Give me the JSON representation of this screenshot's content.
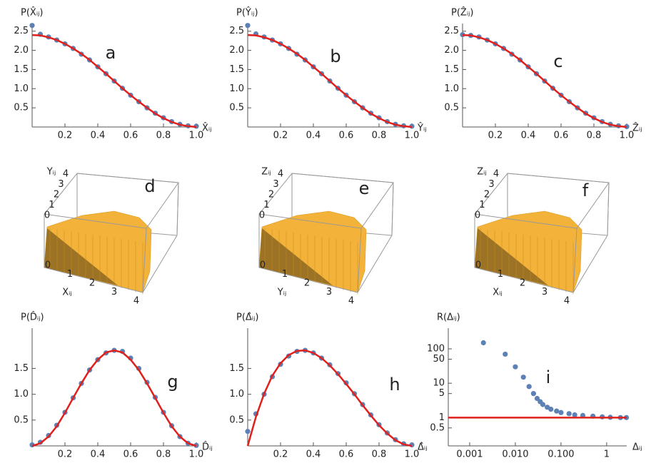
{
  "chart_data": [
    {
      "type": "plot",
      "label": "a",
      "ylabel": "P(X̂ᵢⱼ)",
      "xlabel": "X̂ᵢⱼ",
      "xlim": [
        0,
        1
      ],
      "ylim": [
        0,
        2.7
      ],
      "xticks": [
        0.2,
        0.4,
        0.6,
        0.8,
        {
          "value": 1,
          "label": "1.0"
        }
      ],
      "yticks": [
        0.5,
        {
          "value": 1,
          "label": "1.0"
        },
        1.5,
        {
          "value": 2,
          "label": "2.0"
        },
        2.5
      ],
      "series": [
        {
          "style": "points",
          "color": "#5e81b5",
          "x": [
            0,
            0.05,
            0.1,
            0.15,
            0.2,
            0.25,
            0.3,
            0.35,
            0.4,
            0.45,
            0.5,
            0.55,
            0.6,
            0.65,
            0.7,
            0.75,
            0.8,
            0.85,
            0.9,
            0.95,
            1
          ],
          "values": [
            2.65,
            2.42,
            2.35,
            2.27,
            2.17,
            2.05,
            1.9,
            1.75,
            1.57,
            1.39,
            1.2,
            1.01,
            0.83,
            0.66,
            0.5,
            0.36,
            0.24,
            0.14,
            0.07,
            0.03,
            0.02
          ]
        },
        {
          "style": "line",
          "color": "#e0201c",
          "x": [
            0,
            0.05,
            0.1,
            0.15,
            0.2,
            0.25,
            0.3,
            0.35,
            0.4,
            0.45,
            0.5,
            0.55,
            0.6,
            0.65,
            0.7,
            0.75,
            0.8,
            0.85,
            0.9,
            0.95,
            1
          ],
          "values": [
            2.4,
            2.39,
            2.34,
            2.27,
            2.17,
            2.05,
            1.91,
            1.75,
            1.57,
            1.39,
            1.2,
            1.01,
            0.83,
            0.66,
            0.5,
            0.35,
            0.23,
            0.13,
            0.06,
            0.02,
            0
          ]
        }
      ]
    },
    {
      "type": "plot",
      "label": "b",
      "ylabel": "P(Ŷᵢⱼ)",
      "xlabel": "Ŷᵢⱼ",
      "xlim": [
        0,
        1
      ],
      "ylim": [
        0,
        2.7
      ],
      "xticks": [
        0.2,
        0.4,
        0.6,
        0.8,
        {
          "value": 1,
          "label": "1.0"
        }
      ],
      "yticks": [
        0.5,
        {
          "value": 1,
          "label": "1.0"
        },
        1.5,
        {
          "value": 2,
          "label": "2.0"
        },
        2.5
      ],
      "series": [
        {
          "style": "points",
          "color": "#5e81b5",
          "x": [
            0,
            0.05,
            0.1,
            0.15,
            0.2,
            0.25,
            0.3,
            0.35,
            0.4,
            0.45,
            0.5,
            0.55,
            0.6,
            0.65,
            0.7,
            0.75,
            0.8,
            0.85,
            0.9,
            0.95,
            1
          ],
          "values": [
            2.65,
            2.43,
            2.35,
            2.27,
            2.17,
            2.05,
            1.9,
            1.75,
            1.57,
            1.39,
            1.2,
            1.01,
            0.83,
            0.66,
            0.5,
            0.36,
            0.24,
            0.14,
            0.07,
            0.03,
            0.02
          ]
        },
        {
          "style": "line",
          "color": "#e0201c",
          "x": [
            0,
            0.05,
            0.1,
            0.15,
            0.2,
            0.25,
            0.3,
            0.35,
            0.4,
            0.45,
            0.5,
            0.55,
            0.6,
            0.65,
            0.7,
            0.75,
            0.8,
            0.85,
            0.9,
            0.95,
            1
          ],
          "values": [
            2.4,
            2.39,
            2.34,
            2.27,
            2.17,
            2.05,
            1.91,
            1.75,
            1.57,
            1.39,
            1.2,
            1.01,
            0.83,
            0.66,
            0.5,
            0.35,
            0.23,
            0.13,
            0.06,
            0.02,
            0
          ]
        }
      ]
    },
    {
      "type": "plot",
      "label": "c",
      "ylabel": "P(Ẑᵢⱼ)",
      "xlabel": "Ẑᵢⱼ",
      "xlim": [
        0,
        1
      ],
      "ylim": [
        0,
        2.7
      ],
      "xticks": [
        0.2,
        0.4,
        0.6,
        0.8,
        {
          "value": 1,
          "label": "1.0"
        }
      ],
      "yticks": [
        0.5,
        {
          "value": 1,
          "label": "1.0"
        },
        1.5,
        {
          "value": 2,
          "label": "2.0"
        },
        2.5
      ],
      "series": [
        {
          "style": "points",
          "color": "#5e81b5",
          "x": [
            0,
            0.05,
            0.1,
            0.15,
            0.2,
            0.25,
            0.3,
            0.35,
            0.4,
            0.45,
            0.5,
            0.55,
            0.6,
            0.65,
            0.7,
            0.75,
            0.8,
            0.85,
            0.9,
            0.95,
            1
          ],
          "values": [
            2.41,
            2.39,
            2.35,
            2.27,
            2.17,
            2.05,
            1.9,
            1.75,
            1.57,
            1.39,
            1.2,
            1.01,
            0.83,
            0.66,
            0.5,
            0.36,
            0.24,
            0.14,
            0.07,
            0.03,
            0.01
          ]
        },
        {
          "style": "line",
          "color": "#e0201c",
          "x": [
            0,
            0.05,
            0.1,
            0.15,
            0.2,
            0.25,
            0.3,
            0.35,
            0.4,
            0.45,
            0.5,
            0.55,
            0.6,
            0.65,
            0.7,
            0.75,
            0.8,
            0.85,
            0.9,
            0.95,
            1
          ],
          "values": [
            2.4,
            2.39,
            2.34,
            2.27,
            2.17,
            2.05,
            1.91,
            1.75,
            1.57,
            1.39,
            1.2,
            1.01,
            0.83,
            0.66,
            0.5,
            0.35,
            0.23,
            0.13,
            0.06,
            0.02,
            0
          ]
        }
      ]
    },
    {
      "type": "bar3d",
      "label": "d",
      "axis1_label": "Yᵢⱼ",
      "axis1_ticks": [
        0,
        1,
        2,
        3,
        4
      ],
      "axis2_label": "Xᵢⱼ",
      "axis2_ticks": [
        0,
        1,
        2,
        3,
        4
      ]
    },
    {
      "type": "bar3d",
      "label": "e",
      "axis1_label": "Zᵢⱼ",
      "axis1_ticks": [
        0,
        1,
        2,
        3,
        4
      ],
      "axis2_label": "Yᵢⱼ",
      "axis2_ticks": [
        0,
        1,
        2,
        3,
        4
      ]
    },
    {
      "type": "bar3d",
      "label": "f",
      "axis1_label": "Zᵢⱼ",
      "axis1_ticks": [
        0,
        1,
        2,
        3,
        4
      ],
      "axis2_label": "Xᵢⱼ",
      "axis2_ticks": [
        0,
        1,
        2,
        3,
        4
      ]
    },
    {
      "type": "plot",
      "label": "g",
      "ylabel": "P(D̂ᵢⱼ)",
      "xlabel": "D̂ᵢⱼ",
      "xlim": [
        0,
        1
      ],
      "ylim": [
        0,
        2.28
      ],
      "xticks": [
        0.2,
        0.4,
        0.6,
        0.8,
        {
          "value": 1,
          "label": "1.0"
        }
      ],
      "yticks": [
        0.5,
        {
          "value": 1,
          "label": "1.0"
        },
        1.5
      ],
      "series": [
        {
          "style": "points",
          "color": "#5e81b5",
          "x": [
            0,
            0.05,
            0.1,
            0.15,
            0.2,
            0.25,
            0.3,
            0.35,
            0.4,
            0.45,
            0.5,
            0.55,
            0.6,
            0.65,
            0.7,
            0.75,
            0.8,
            0.85,
            0.9,
            0.95,
            1
          ],
          "values": [
            0.02,
            0.07,
            0.2,
            0.4,
            0.65,
            0.93,
            1.21,
            1.47,
            1.67,
            1.8,
            1.85,
            1.83,
            1.7,
            1.5,
            1.23,
            0.94,
            0.65,
            0.39,
            0.18,
            0.05,
            0.01
          ]
        },
        {
          "style": "line",
          "color": "#e0201c",
          "x": [
            0,
            0.05,
            0.1,
            0.15,
            0.2,
            0.25,
            0.3,
            0.35,
            0.4,
            0.45,
            0.5,
            0.55,
            0.6,
            0.65,
            0.7,
            0.75,
            0.8,
            0.85,
            0.9,
            0.95,
            1
          ],
          "values": [
            0,
            0.05,
            0.18,
            0.38,
            0.64,
            0.93,
            1.21,
            1.47,
            1.67,
            1.81,
            1.85,
            1.81,
            1.67,
            1.47,
            1.21,
            0.93,
            0.64,
            0.38,
            0.18,
            0.05,
            0
          ]
        }
      ]
    },
    {
      "type": "plot",
      "label": "h",
      "ylabel": "P(Δ̂ᵢⱼ)",
      "xlabel": "Δ̂ᵢⱼ",
      "xlim": [
        0,
        1
      ],
      "ylim": [
        0,
        2.28
      ],
      "xticks": [
        0.2,
        0.4,
        0.6,
        0.8,
        {
          "value": 1,
          "label": "1.0"
        }
      ],
      "yticks": [
        0.5,
        {
          "value": 1,
          "label": "1.0"
        },
        1.5
      ],
      "series": [
        {
          "style": "points",
          "color": "#5e81b5",
          "x": [
            0,
            0.05,
            0.1,
            0.15,
            0.2,
            0.25,
            0.3,
            0.35,
            0.4,
            0.45,
            0.5,
            0.55,
            0.6,
            0.65,
            0.7,
            0.75,
            0.8,
            0.85,
            0.9,
            0.95,
            1
          ],
          "values": [
            0.28,
            0.62,
            1.0,
            1.34,
            1.58,
            1.74,
            1.83,
            1.85,
            1.8,
            1.7,
            1.57,
            1.4,
            1.22,
            1.01,
            0.8,
            0.6,
            0.41,
            0.25,
            0.12,
            0.04,
            0.02
          ]
        },
        {
          "style": "line",
          "color": "#e0201c",
          "x": [
            0,
            0.05,
            0.1,
            0.15,
            0.2,
            0.25,
            0.3,
            0.35,
            0.4,
            0.45,
            0.5,
            0.55,
            0.6,
            0.65,
            0.7,
            0.75,
            0.8,
            0.85,
            0.9,
            0.95,
            1
          ],
          "values": [
            0,
            0.56,
            1.01,
            1.36,
            1.6,
            1.76,
            1.84,
            1.85,
            1.8,
            1.7,
            1.56,
            1.39,
            1.2,
            1.0,
            0.79,
            0.59,
            0.4,
            0.24,
            0.11,
            0.03,
            0
          ]
        }
      ]
    },
    {
      "type": "plot",
      "label": "i",
      "ylabel": "R(Δᵢⱼ)",
      "xlabel": "Δᵢⱼ",
      "xlog": true,
      "ylog": true,
      "xlim": [
        0.00034,
        2.75
      ],
      "ylim": [
        0.15,
        400
      ],
      "xticks": [
        0.001,
        {
          "value": 0.01,
          "label": "0.010"
        },
        {
          "value": 0.1,
          "label": "0.100"
        },
        1
      ],
      "yticks": [
        0.5,
        1,
        5,
        10,
        50,
        100
      ],
      "series": [
        {
          "style": "points",
          "color": "#5e81b5",
          "x": [
            0.002,
            0.006,
            0.01,
            0.015,
            0.02,
            0.025,
            0.03,
            0.035,
            0.04,
            0.05,
            0.06,
            0.08,
            0.1,
            0.15,
            0.2,
            0.3,
            0.5,
            0.8,
            1.2,
            2,
            2.7
          ],
          "values": [
            150,
            70,
            30,
            15,
            8,
            5,
            3.6,
            2.9,
            2.4,
            2,
            1.75,
            1.55,
            1.4,
            1.3,
            1.2,
            1.15,
            1.1,
            1.05,
            1.02,
            1.0,
            1.0
          ]
        },
        {
          "style": "line",
          "color": "#e0201c",
          "x": [
            0.00034,
            2.75
          ],
          "values": [
            1,
            1
          ]
        }
      ]
    }
  ]
}
